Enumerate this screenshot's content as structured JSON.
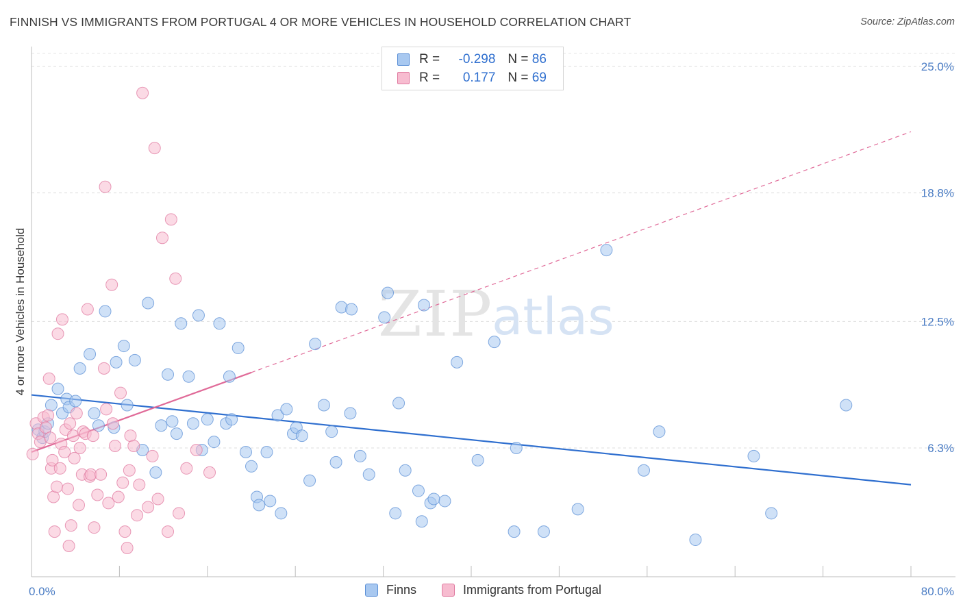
{
  "title": "FINNISH VS IMMIGRANTS FROM PORTUGAL 4 OR MORE VEHICLES IN HOUSEHOLD CORRELATION CHART",
  "source": "Source: ZipAtlas.com",
  "watermark": {
    "zip": "ZIP",
    "atlas": "atlas"
  },
  "legend": {
    "rows": [
      {
        "r_label": "R =",
        "r_value": "-0.298",
        "n_label": "N =",
        "n_value": "86",
        "color": "#a8c8f0",
        "border": "#5b8fd6"
      },
      {
        "r_label": "R =",
        "r_value": " 0.177",
        "n_label": "N =",
        "n_value": "69",
        "color": "#f7bcd0",
        "border": "#e07aa0"
      }
    ]
  },
  "bottom_legend": [
    "Finns",
    "Immigrants from Portugal"
  ],
  "chart_data": {
    "type": "scatter",
    "title": "FINNISH VS IMMIGRANTS FROM PORTUGAL 4 OR MORE VEHICLES IN HOUSEHOLD CORRELATION CHART",
    "xlabel": "",
    "ylabel": "4 or more Vehicles in Household",
    "xlim": [
      0,
      80
    ],
    "ylim": [
      0,
      26
    ],
    "x_tick_labels": [
      "0.0%",
      "80.0%"
    ],
    "y_ticks": [
      6.3,
      12.5,
      18.8,
      25.0
    ],
    "y_tick_labels": [
      "6.3%",
      "12.5%",
      "18.8%",
      "25.0%"
    ],
    "grid": true,
    "legend_position": "top-center",
    "series": [
      {
        "name": "Finns",
        "color": "#5b8fd6",
        "fill": "#a8c8f0",
        "trend": {
          "x0": 0,
          "y0": 8.9,
          "x1": 80,
          "y1": 4.5,
          "style": "solid"
        },
        "points": [
          [
            0.6,
            7.2
          ],
          [
            1.0,
            6.8
          ],
          [
            1.2,
            7.1
          ],
          [
            1.5,
            7.5
          ],
          [
            1.8,
            8.4
          ],
          [
            2.4,
            9.2
          ],
          [
            2.8,
            8.0
          ],
          [
            3.2,
            8.7
          ],
          [
            3.4,
            8.3
          ],
          [
            4.0,
            8.6
          ],
          [
            4.4,
            10.2
          ],
          [
            5.3,
            10.9
          ],
          [
            5.7,
            8.0
          ],
          [
            6.1,
            7.4
          ],
          [
            6.7,
            13.0
          ],
          [
            7.5,
            7.3
          ],
          [
            7.7,
            10.5
          ],
          [
            8.4,
            11.3
          ],
          [
            8.7,
            8.4
          ],
          [
            9.4,
            10.6
          ],
          [
            10.1,
            6.2
          ],
          [
            10.6,
            13.4
          ],
          [
            11.3,
            5.1
          ],
          [
            11.8,
            7.4
          ],
          [
            12.4,
            9.9
          ],
          [
            12.8,
            7.6
          ],
          [
            13.2,
            7.0
          ],
          [
            13.6,
            12.4
          ],
          [
            14.3,
            9.8
          ],
          [
            14.7,
            7.5
          ],
          [
            15.2,
            12.8
          ],
          [
            15.5,
            6.2
          ],
          [
            16.0,
            7.7
          ],
          [
            16.6,
            6.6
          ],
          [
            17.1,
            12.4
          ],
          [
            17.7,
            7.5
          ],
          [
            18.0,
            9.8
          ],
          [
            18.2,
            7.7
          ],
          [
            18.8,
            11.2
          ],
          [
            19.5,
            6.1
          ],
          [
            20.0,
            5.4
          ],
          [
            20.5,
            3.9
          ],
          [
            20.7,
            3.5
          ],
          [
            21.4,
            6.1
          ],
          [
            21.7,
            3.7
          ],
          [
            22.4,
            7.9
          ],
          [
            22.7,
            3.1
          ],
          [
            23.2,
            8.2
          ],
          [
            23.8,
            7.0
          ],
          [
            24.1,
            7.3
          ],
          [
            24.6,
            6.9
          ],
          [
            25.3,
            4.7
          ],
          [
            25.8,
            11.4
          ],
          [
            26.6,
            8.4
          ],
          [
            27.3,
            7.1
          ],
          [
            27.7,
            5.6
          ],
          [
            28.2,
            13.2
          ],
          [
            29.0,
            8.0
          ],
          [
            29.1,
            13.1
          ],
          [
            29.9,
            5.9
          ],
          [
            30.7,
            5.0
          ],
          [
            32.1,
            12.7
          ],
          [
            32.4,
            13.9
          ],
          [
            33.1,
            3.1
          ],
          [
            33.4,
            8.5
          ],
          [
            34.0,
            5.2
          ],
          [
            35.2,
            4.2
          ],
          [
            35.5,
            2.7
          ],
          [
            35.7,
            13.3
          ],
          [
            36.3,
            3.6
          ],
          [
            36.6,
            3.8
          ],
          [
            37.6,
            3.7
          ],
          [
            38.7,
            10.5
          ],
          [
            40.6,
            5.7
          ],
          [
            42.1,
            11.5
          ],
          [
            43.9,
            2.2
          ],
          [
            44.1,
            6.3
          ],
          [
            46.6,
            2.2
          ],
          [
            49.7,
            3.3
          ],
          [
            52.3,
            16.0
          ],
          [
            55.7,
            5.2
          ],
          [
            57.1,
            7.1
          ],
          [
            60.4,
            1.8
          ],
          [
            65.7,
            5.9
          ],
          [
            67.3,
            3.1
          ],
          [
            74.1,
            8.4
          ]
        ]
      },
      {
        "name": "Immigrants from Portugal",
        "color": "#e07aa0",
        "fill": "#f7bcd0",
        "trend": {
          "x0": 0,
          "y0": 6.1,
          "x1": 20,
          "y1": 10.0,
          "x2": 80,
          "y2": 21.8,
          "style": "solid-then-dashed"
        },
        "points": [
          [
            0.1,
            6.0
          ],
          [
            0.4,
            7.5
          ],
          [
            0.6,
            7.0
          ],
          [
            0.8,
            6.6
          ],
          [
            1.1,
            7.8
          ],
          [
            1.3,
            7.3
          ],
          [
            1.5,
            7.9
          ],
          [
            1.7,
            6.8
          ],
          [
            1.6,
            9.7
          ],
          [
            1.8,
            5.3
          ],
          [
            1.9,
            5.7
          ],
          [
            2.0,
            3.9
          ],
          [
            2.1,
            2.2
          ],
          [
            2.3,
            4.4
          ],
          [
            2.4,
            11.9
          ],
          [
            2.6,
            5.3
          ],
          [
            2.7,
            6.5
          ],
          [
            2.8,
            12.6
          ],
          [
            3.0,
            6.1
          ],
          [
            3.1,
            7.2
          ],
          [
            3.3,
            4.3
          ],
          [
            3.4,
            1.5
          ],
          [
            3.5,
            7.5
          ],
          [
            3.6,
            2.5
          ],
          [
            3.8,
            6.9
          ],
          [
            3.9,
            5.8
          ],
          [
            4.1,
            8.0
          ],
          [
            4.3,
            3.5
          ],
          [
            4.4,
            6.3
          ],
          [
            4.6,
            5.0
          ],
          [
            4.7,
            7.1
          ],
          [
            4.9,
            7.0
          ],
          [
            5.1,
            13.1
          ],
          [
            5.3,
            4.9
          ],
          [
            5.4,
            5.0
          ],
          [
            5.6,
            6.9
          ],
          [
            5.7,
            2.4
          ],
          [
            6.0,
            4.0
          ],
          [
            6.3,
            5.0
          ],
          [
            6.6,
            10.2
          ],
          [
            6.7,
            19.1
          ],
          [
            6.8,
            8.2
          ],
          [
            7.0,
            3.6
          ],
          [
            7.3,
            14.3
          ],
          [
            7.6,
            6.4
          ],
          [
            7.9,
            3.9
          ],
          [
            8.1,
            9.0
          ],
          [
            8.3,
            4.6
          ],
          [
            8.5,
            2.2
          ],
          [
            8.7,
            1.4
          ],
          [
            8.9,
            5.2
          ],
          [
            9.0,
            6.9
          ],
          [
            9.3,
            6.4
          ],
          [
            9.6,
            3.0
          ],
          [
            10.1,
            23.7
          ],
          [
            10.6,
            3.4
          ],
          [
            11.2,
            21.0
          ],
          [
            11.5,
            3.8
          ],
          [
            11.9,
            16.6
          ],
          [
            12.4,
            2.2
          ],
          [
            12.7,
            17.5
          ],
          [
            13.1,
            14.6
          ],
          [
            13.4,
            3.1
          ],
          [
            14.1,
            5.3
          ],
          [
            15.0,
            6.2
          ],
          [
            16.2,
            5.1
          ],
          [
            9.8,
            4.5
          ],
          [
            7.4,
            7.5
          ],
          [
            11.0,
            5.9
          ]
        ]
      }
    ]
  }
}
